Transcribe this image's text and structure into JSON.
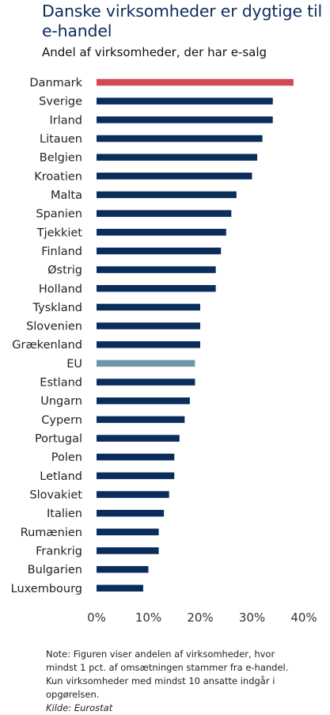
{
  "header": {
    "title": "Danske virksomheder er dygtige til e-handel",
    "subtitle": "Andel af virksomheder, der har e-salg"
  },
  "footer": {
    "note": "Note: Figuren viser andelen af virksomheder, hvor mindst 1 pct. af omsætningen stammer fra e-handel. Kun virksomheder med mindst 10 ansatte indgår i opgørelsen.",
    "source": "Kilde: Eurostat"
  },
  "chart_data": {
    "type": "bar",
    "orientation": "horizontal",
    "title": "Danske virksomheder er dygtige til e-handel",
    "subtitle": "Andel af virksomheder, der har e-salg",
    "categories": [
      "Danmark",
      "Sverige",
      "Irland",
      "Litauen",
      "Belgien",
      "Kroatien",
      "Malta",
      "Spanien",
      "Tjekkiet",
      "Finland",
      "Østrig",
      "Holland",
      "Tyskland",
      "Slovenien",
      "Grækenland",
      "EU",
      "Estland",
      "Ungarn",
      "Cypern",
      "Portugal",
      "Polen",
      "Letland",
      "Slovakiet",
      "Italien",
      "Rumænien",
      "Frankrig",
      "Bulgarien",
      "Luxembourg"
    ],
    "values": [
      38,
      34,
      34,
      32,
      31,
      30,
      27,
      26,
      25,
      24,
      23,
      23,
      20,
      20,
      20,
      19,
      19,
      18,
      17,
      16,
      15,
      15,
      14,
      13,
      12,
      12,
      10,
      9
    ],
    "xlim": [
      0,
      40
    ],
    "xticks": [
      "0%",
      "10%",
      "20%",
      "30%",
      "40%"
    ],
    "grid": false,
    "colors": {
      "default": "#0b2d5c",
      "Danmark": "#d24a55",
      "EU": "#6e98a8"
    }
  }
}
